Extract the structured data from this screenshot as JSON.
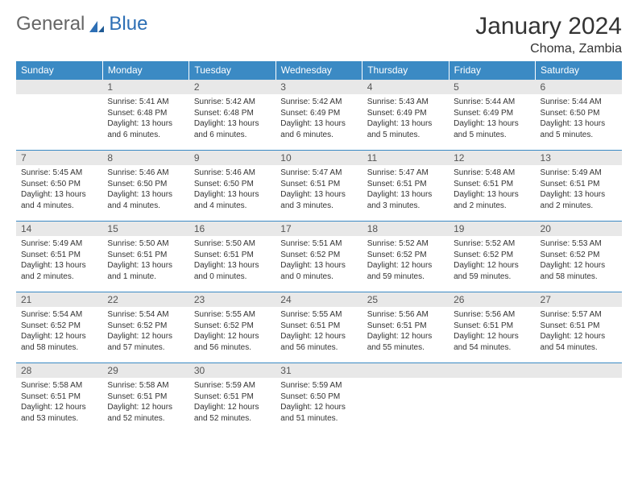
{
  "brand": {
    "part1": "General",
    "part2": "Blue"
  },
  "title": "January 2024",
  "location": "Choma, Zambia",
  "colors": {
    "header_bg": "#3b8ac4",
    "header_text": "#ffffff",
    "daynum_bg": "#e8e8e8",
    "border": "#3b8ac4",
    "text": "#333333",
    "brand_gray": "#666666",
    "brand_blue": "#2d6fb5"
  },
  "weekdays": [
    "Sunday",
    "Monday",
    "Tuesday",
    "Wednesday",
    "Thursday",
    "Friday",
    "Saturday"
  ],
  "weeks": [
    [
      null,
      {
        "n": "1",
        "sr": "5:41 AM",
        "ss": "6:48 PM",
        "dl": "13 hours and 6 minutes."
      },
      {
        "n": "2",
        "sr": "5:42 AM",
        "ss": "6:48 PM",
        "dl": "13 hours and 6 minutes."
      },
      {
        "n": "3",
        "sr": "5:42 AM",
        "ss": "6:49 PM",
        "dl": "13 hours and 6 minutes."
      },
      {
        "n": "4",
        "sr": "5:43 AM",
        "ss": "6:49 PM",
        "dl": "13 hours and 5 minutes."
      },
      {
        "n": "5",
        "sr": "5:44 AM",
        "ss": "6:49 PM",
        "dl": "13 hours and 5 minutes."
      },
      {
        "n": "6",
        "sr": "5:44 AM",
        "ss": "6:50 PM",
        "dl": "13 hours and 5 minutes."
      }
    ],
    [
      {
        "n": "7",
        "sr": "5:45 AM",
        "ss": "6:50 PM",
        "dl": "13 hours and 4 minutes."
      },
      {
        "n": "8",
        "sr": "5:46 AM",
        "ss": "6:50 PM",
        "dl": "13 hours and 4 minutes."
      },
      {
        "n": "9",
        "sr": "5:46 AM",
        "ss": "6:50 PM",
        "dl": "13 hours and 4 minutes."
      },
      {
        "n": "10",
        "sr": "5:47 AM",
        "ss": "6:51 PM",
        "dl": "13 hours and 3 minutes."
      },
      {
        "n": "11",
        "sr": "5:47 AM",
        "ss": "6:51 PM",
        "dl": "13 hours and 3 minutes."
      },
      {
        "n": "12",
        "sr": "5:48 AM",
        "ss": "6:51 PM",
        "dl": "13 hours and 2 minutes."
      },
      {
        "n": "13",
        "sr": "5:49 AM",
        "ss": "6:51 PM",
        "dl": "13 hours and 2 minutes."
      }
    ],
    [
      {
        "n": "14",
        "sr": "5:49 AM",
        "ss": "6:51 PM",
        "dl": "13 hours and 2 minutes."
      },
      {
        "n": "15",
        "sr": "5:50 AM",
        "ss": "6:51 PM",
        "dl": "13 hours and 1 minute."
      },
      {
        "n": "16",
        "sr": "5:50 AM",
        "ss": "6:51 PM",
        "dl": "13 hours and 0 minutes."
      },
      {
        "n": "17",
        "sr": "5:51 AM",
        "ss": "6:52 PM",
        "dl": "13 hours and 0 minutes."
      },
      {
        "n": "18",
        "sr": "5:52 AM",
        "ss": "6:52 PM",
        "dl": "12 hours and 59 minutes."
      },
      {
        "n": "19",
        "sr": "5:52 AM",
        "ss": "6:52 PM",
        "dl": "12 hours and 59 minutes."
      },
      {
        "n": "20",
        "sr": "5:53 AM",
        "ss": "6:52 PM",
        "dl": "12 hours and 58 minutes."
      }
    ],
    [
      {
        "n": "21",
        "sr": "5:54 AM",
        "ss": "6:52 PM",
        "dl": "12 hours and 58 minutes."
      },
      {
        "n": "22",
        "sr": "5:54 AM",
        "ss": "6:52 PM",
        "dl": "12 hours and 57 minutes."
      },
      {
        "n": "23",
        "sr": "5:55 AM",
        "ss": "6:52 PM",
        "dl": "12 hours and 56 minutes."
      },
      {
        "n": "24",
        "sr": "5:55 AM",
        "ss": "6:51 PM",
        "dl": "12 hours and 56 minutes."
      },
      {
        "n": "25",
        "sr": "5:56 AM",
        "ss": "6:51 PM",
        "dl": "12 hours and 55 minutes."
      },
      {
        "n": "26",
        "sr": "5:56 AM",
        "ss": "6:51 PM",
        "dl": "12 hours and 54 minutes."
      },
      {
        "n": "27",
        "sr": "5:57 AM",
        "ss": "6:51 PM",
        "dl": "12 hours and 54 minutes."
      }
    ],
    [
      {
        "n": "28",
        "sr": "5:58 AM",
        "ss": "6:51 PM",
        "dl": "12 hours and 53 minutes."
      },
      {
        "n": "29",
        "sr": "5:58 AM",
        "ss": "6:51 PM",
        "dl": "12 hours and 52 minutes."
      },
      {
        "n": "30",
        "sr": "5:59 AM",
        "ss": "6:51 PM",
        "dl": "12 hours and 52 minutes."
      },
      {
        "n": "31",
        "sr": "5:59 AM",
        "ss": "6:50 PM",
        "dl": "12 hours and 51 minutes."
      },
      null,
      null,
      null
    ]
  ],
  "labels": {
    "sunrise": "Sunrise: ",
    "sunset": "Sunset: ",
    "daylight": "Daylight: "
  }
}
